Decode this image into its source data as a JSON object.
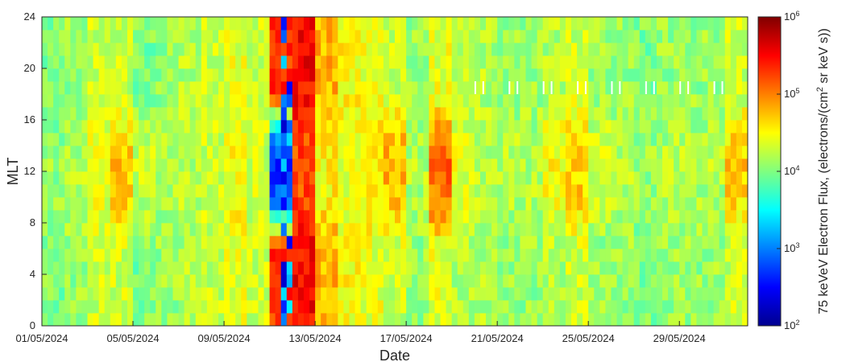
{
  "chart_data": {
    "type": "heatmap",
    "title": "",
    "xlabel": "Date",
    "ylabel": "MLT",
    "x_range": [
      "2024-05-01",
      "2024-06-01"
    ],
    "x_ticks": [
      "01/05/2024",
      "05/05/2024",
      "09/05/2024",
      "13/05/2024",
      "17/05/2024",
      "21/05/2024",
      "25/05/2024",
      "29/05/2024"
    ],
    "x_tick_dates": [
      "2024-05-01",
      "2024-05-05",
      "2024-05-09",
      "2024-05-13",
      "2024-05-17",
      "2024-05-21",
      "2024-05-25",
      "2024-05-29"
    ],
    "ylim": [
      0,
      24
    ],
    "y_ticks": [
      0,
      4,
      8,
      12,
      16,
      20,
      24
    ],
    "y_bin_width": 1,
    "colormap": "jet",
    "colorbar": {
      "label_main": "75 keVeV Electron Flux, (electrons/(cm",
      "label_sup": "2",
      "label_tail": " sr keV s))",
      "scale": "log",
      "range": [
        100,
        1000000
      ],
      "tick_base": "10",
      "tick_exponents": [
        "2",
        "3",
        "4",
        "5",
        "6"
      ]
    },
    "daily_log10_flux_pattern": [
      {
        "date": "2024-05-01",
        "day": 4.1,
        "night": 4.0
      },
      {
        "date": "2024-05-02",
        "day": 4.2,
        "night": 4.1
      },
      {
        "date": "2024-05-03",
        "day": 4.4,
        "night": 4.3
      },
      {
        "date": "2024-05-04",
        "day": 4.7,
        "night": 4.3
      },
      {
        "date": "2024-05-05",
        "day": 4.3,
        "night": 4.0
      },
      {
        "date": "2024-05-06",
        "day": 4.2,
        "night": 4.1
      },
      {
        "date": "2024-05-07",
        "day": 4.2,
        "night": 4.2
      },
      {
        "date": "2024-05-08",
        "day": 4.3,
        "night": 4.3
      },
      {
        "date": "2024-05-09",
        "day": 4.5,
        "night": 4.4
      },
      {
        "date": "2024-05-10",
        "day": 4.3,
        "night": 4.3
      },
      {
        "date": "2024-05-11",
        "day": 2.6,
        "night": 5.3
      },
      {
        "date": "2024-05-12",
        "day": 5.2,
        "night": 5.5
      },
      {
        "date": "2024-05-13",
        "day": 4.5,
        "night": 4.8
      },
      {
        "date": "2024-05-14",
        "day": 4.4,
        "night": 4.5
      },
      {
        "date": "2024-05-15",
        "day": 4.6,
        "night": 4.4
      },
      {
        "date": "2024-05-16",
        "day": 4.8,
        "night": 4.3
      },
      {
        "date": "2024-05-17",
        "day": 4.2,
        "night": 4.1
      },
      {
        "date": "2024-05-18",
        "day": 5.1,
        "night": 4.4
      },
      {
        "date": "2024-05-19",
        "day": 4.4,
        "night": 4.2
      },
      {
        "date": "2024-05-20",
        "day": 4.2,
        "night": 4.2
      },
      {
        "date": "2024-05-21",
        "day": 4.2,
        "night": 4.1
      },
      {
        "date": "2024-05-22",
        "day": 4.2,
        "night": 4.1
      },
      {
        "date": "2024-05-23",
        "day": 4.5,
        "night": 4.2
      },
      {
        "date": "2024-05-24",
        "day": 4.7,
        "night": 4.3
      },
      {
        "date": "2024-05-25",
        "day": 4.3,
        "night": 4.1
      },
      {
        "date": "2024-05-26",
        "day": 4.2,
        "night": 4.1
      },
      {
        "date": "2024-05-27",
        "day": 4.1,
        "night": 4.0
      },
      {
        "date": "2024-05-28",
        "day": 4.2,
        "night": 4.1
      },
      {
        "date": "2024-05-29",
        "day": 4.2,
        "night": 4.1
      },
      {
        "date": "2024-05-30",
        "day": 4.2,
        "night": 4.1
      },
      {
        "date": "2024-05-31",
        "day": 4.7,
        "night": 4.3
      }
    ],
    "data_gaps": {
      "mlt_bin": [
        18,
        19
      ],
      "from_date": "2024-05-20",
      "spacing_days": 1.5
    }
  }
}
